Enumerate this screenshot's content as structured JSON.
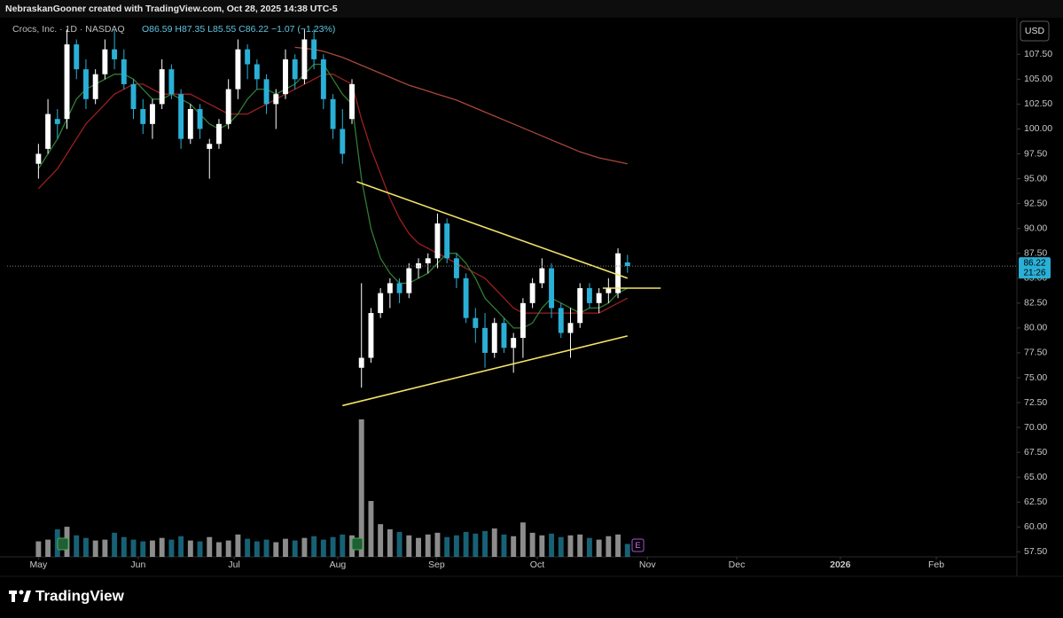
{
  "chart_data": {
    "type": "candlestick",
    "header": "NebraskanGooner created with TradingView.com, Oct 28, 2025 14:38 UTC-5",
    "symbol": "Crocs, Inc. · 1D · NASDAQ",
    "ohlc_text": "O86.59 H87.35 L85.55 C86.22 −1.07 (−1.23%)",
    "currency": "USD",
    "countdown": "21:26",
    "brand": "TradingView",
    "earnings_label": "E",
    "up_color": "#ffffff",
    "down_color": "#2ab0d6",
    "candles": {
      "open": [
        96.5,
        98,
        101,
        101,
        108.5,
        106,
        103,
        105.5,
        108,
        107,
        104.5,
        102,
        100.5,
        102.5,
        106,
        103.5,
        99,
        102,
        98,
        98.5,
        100.5,
        104,
        108,
        106.5,
        105,
        102.5,
        103.5,
        107,
        105,
        109,
        107,
        103,
        100,
        101,
        76,
        77,
        81.5,
        83.5,
        84.5,
        83.5,
        86,
        86.5,
        87,
        90.5,
        87,
        85,
        81,
        80,
        77.5,
        80.5,
        78,
        79,
        82.5,
        84.5,
        86,
        82,
        79.5,
        80.5,
        84,
        82.5,
        83.5,
        83.5,
        86.59
      ],
      "high": [
        98.5,
        103,
        102,
        110,
        109,
        107,
        106,
        109,
        110,
        108,
        105,
        103,
        103,
        107,
        106.5,
        104,
        102.5,
        102.5,
        99,
        101,
        105,
        109,
        108.5,
        107,
        105.5,
        104,
        108,
        107.5,
        110,
        110,
        107.5,
        103.5,
        102,
        105,
        84.5,
        82,
        84,
        85,
        85,
        86.5,
        87,
        87.5,
        91.5,
        91,
        87.5,
        85.5,
        82,
        81.5,
        81,
        81,
        79.5,
        83,
        85,
        87,
        86.5,
        82.5,
        82,
        84.5,
        84.5,
        84,
        85,
        88,
        87.35
      ],
      "low": [
        95,
        97.5,
        99,
        100,
        105,
        102,
        102.5,
        105,
        106,
        104,
        101,
        99.5,
        99,
        102,
        103,
        98,
        98.5,
        99,
        95,
        98,
        100,
        103,
        105,
        104,
        101.5,
        100,
        103,
        104,
        104.5,
        106,
        102,
        99,
        96.5,
        100.5,
        74,
        76.5,
        81,
        82,
        82.5,
        83,
        85,
        85.5,
        86,
        86.5,
        84,
        80.5,
        78.5,
        76,
        77,
        77.5,
        75.5,
        77,
        82,
        84,
        81,
        79,
        77,
        80,
        82,
        81.5,
        82.5,
        83,
        85.55
      ],
      "close": [
        97.5,
        101.5,
        100.5,
        108.5,
        106,
        103,
        105.5,
        108,
        107,
        104.5,
        102,
        100.5,
        102.5,
        106,
        103.5,
        99,
        102,
        100,
        98.5,
        100.5,
        104,
        108,
        106.5,
        105,
        102.5,
        103.5,
        107,
        105,
        109,
        107,
        103,
        100,
        97.5,
        104.5,
        77,
        81.5,
        83.5,
        84.5,
        83.5,
        86,
        86.5,
        87,
        90.5,
        87,
        85,
        81,
        80,
        77.5,
        80.5,
        78,
        79,
        82.5,
        84.5,
        86,
        82,
        79.5,
        80.5,
        84,
        82.5,
        83.5,
        84,
        87.5,
        86.22
      ],
      "volume": [
        1.8,
        2.0,
        3.2,
        3.5,
        2.5,
        2.2,
        1.9,
        2.0,
        2.8,
        2.3,
        2.0,
        1.8,
        1.9,
        2.2,
        2.0,
        2.4,
        1.9,
        1.8,
        2.3,
        1.7,
        1.9,
        2.6,
        2.1,
        1.8,
        2.0,
        1.7,
        2.1,
        1.9,
        2.2,
        2.4,
        2.0,
        2.3,
        2.6,
        2.5,
        16.0,
        6.5,
        3.8,
        3.2,
        2.9,
        2.5,
        2.2,
        2.6,
        2.8,
        2.3,
        2.5,
        2.9,
        2.7,
        3.0,
        3.3,
        2.6,
        2.4,
        4.0,
        2.8,
        2.5,
        2.7,
        2.3,
        2.5,
        2.6,
        2.2,
        2.0,
        2.4,
        2.6,
        1.5
      ]
    },
    "overlays": [
      {
        "color": "#a8473a",
        "values": [
          null,
          null,
          null,
          null,
          null,
          null,
          null,
          null,
          null,
          null,
          null,
          null,
          null,
          null,
          null,
          null,
          null,
          null,
          null,
          null,
          null,
          null,
          null,
          null,
          null,
          null,
          null,
          108.2,
          108.1,
          108.0,
          107.8,
          107.5,
          107.2,
          106.8,
          106.4,
          106.0,
          105.6,
          105.2,
          104.8,
          104.4,
          104.1,
          103.8,
          103.5,
          103.2,
          102.9,
          102.5,
          102.1,
          101.7,
          101.3,
          100.9,
          100.5,
          100.1,
          99.7,
          99.3,
          98.9,
          98.5,
          98.1,
          97.7,
          97.4,
          97.1,
          96.9,
          96.7,
          96.5
        ]
      },
      {
        "color": "#9c1f1f",
        "values": [
          94,
          95,
          96,
          97.5,
          99,
          100.5,
          101.5,
          102.5,
          103.5,
          104,
          104.5,
          104.5,
          104,
          103.5,
          103.5,
          103.5,
          103.5,
          103,
          102.5,
          102,
          101.5,
          101.5,
          101.5,
          102,
          102.5,
          103,
          103.5,
          104,
          104.5,
          105,
          105.5,
          105.5,
          105,
          104.5,
          101,
          98,
          95.5,
          93,
          91,
          89.5,
          88.5,
          88,
          87.5,
          87,
          86.5,
          86,
          85.5,
          85,
          84,
          83,
          82,
          81.5,
          81.5,
          81.5,
          81.5,
          81.5,
          81.5,
          81.5,
          81.5,
          81.5,
          82,
          82.5,
          83
        ]
      },
      {
        "color": "#2f7d34",
        "values": [
          96,
          97.5,
          99,
          101,
          103,
          104,
          104.5,
          105,
          105.5,
          105.5,
          105,
          104,
          103,
          103,
          103.5,
          103,
          102.5,
          101.5,
          100.5,
          100,
          100.5,
          101.5,
          103,
          104,
          104,
          103.5,
          104,
          104.5,
          105.5,
          106.5,
          106.5,
          105,
          103.5,
          102.5,
          95,
          90,
          87,
          85.5,
          84.5,
          84.5,
          85,
          85.5,
          86.5,
          87.5,
          87.5,
          86.5,
          85,
          83,
          82,
          81,
          80,
          80,
          80.5,
          82,
          83,
          82.5,
          82,
          81.5,
          82,
          82,
          82.5,
          83.5,
          84
        ]
      }
    ],
    "trendlines": [
      {
        "color": "#f3e36a",
        "x": [
          33.5,
          62
        ],
        "y": [
          94.7,
          85.0
        ]
      },
      {
        "color": "#f3e36a",
        "x": [
          32,
          62
        ],
        "y": [
          72.2,
          79.2
        ]
      },
      {
        "color": "#f3e36a",
        "x": [
          59.4,
          65.5
        ],
        "y": [
          84.0,
          84.0
        ]
      }
    ],
    "xlim": [
      -3.3,
      102.8
    ],
    "xticks": [
      {
        "value": 0,
        "label": "May"
      },
      {
        "value": 10.5,
        "label": "Jun"
      },
      {
        "value": 20.6,
        "label": "Jul"
      },
      {
        "value": 31.5,
        "label": "Aug"
      },
      {
        "value": 41.9,
        "label": "Sep"
      },
      {
        "value": 52.5,
        "label": "Oct"
      },
      {
        "value": 64.1,
        "label": "Nov"
      },
      {
        "value": 73.5,
        "label": "Dec"
      },
      {
        "value": 84.4,
        "label": "2026"
      },
      {
        "value": 94.5,
        "label": "Feb"
      }
    ],
    "ylim": [
      57,
      111
    ],
    "yticks": [
      {
        "value": 57.5,
        "label": "57.50"
      },
      {
        "value": 60,
        "label": "60.00"
      },
      {
        "value": 62.5,
        "label": "62.50"
      },
      {
        "value": 65,
        "label": "65.00"
      },
      {
        "value": 67.5,
        "label": "67.50"
      },
      {
        "value": 70,
        "label": "70.00"
      },
      {
        "value": 72.5,
        "label": "72.50"
      },
      {
        "value": 75,
        "label": "75.00"
      },
      {
        "value": 77.5,
        "label": "77.50"
      },
      {
        "value": 80,
        "label": "80.00"
      },
      {
        "value": 82.5,
        "label": "82.50"
      },
      {
        "value": 85,
        "label": "85.00"
      },
      {
        "value": 87.5,
        "label": "87.50"
      },
      {
        "value": 90,
        "label": "90.00"
      },
      {
        "value": 92.5,
        "label": "92.50"
      },
      {
        "value": 95,
        "label": "95.00"
      },
      {
        "value": 97.5,
        "label": "97.50"
      },
      {
        "value": 100,
        "label": "100.00"
      },
      {
        "value": 102.5,
        "label": "102.50"
      },
      {
        "value": 105,
        "label": "105.00"
      },
      {
        "value": 107.5,
        "label": "107.50"
      }
    ]
  }
}
